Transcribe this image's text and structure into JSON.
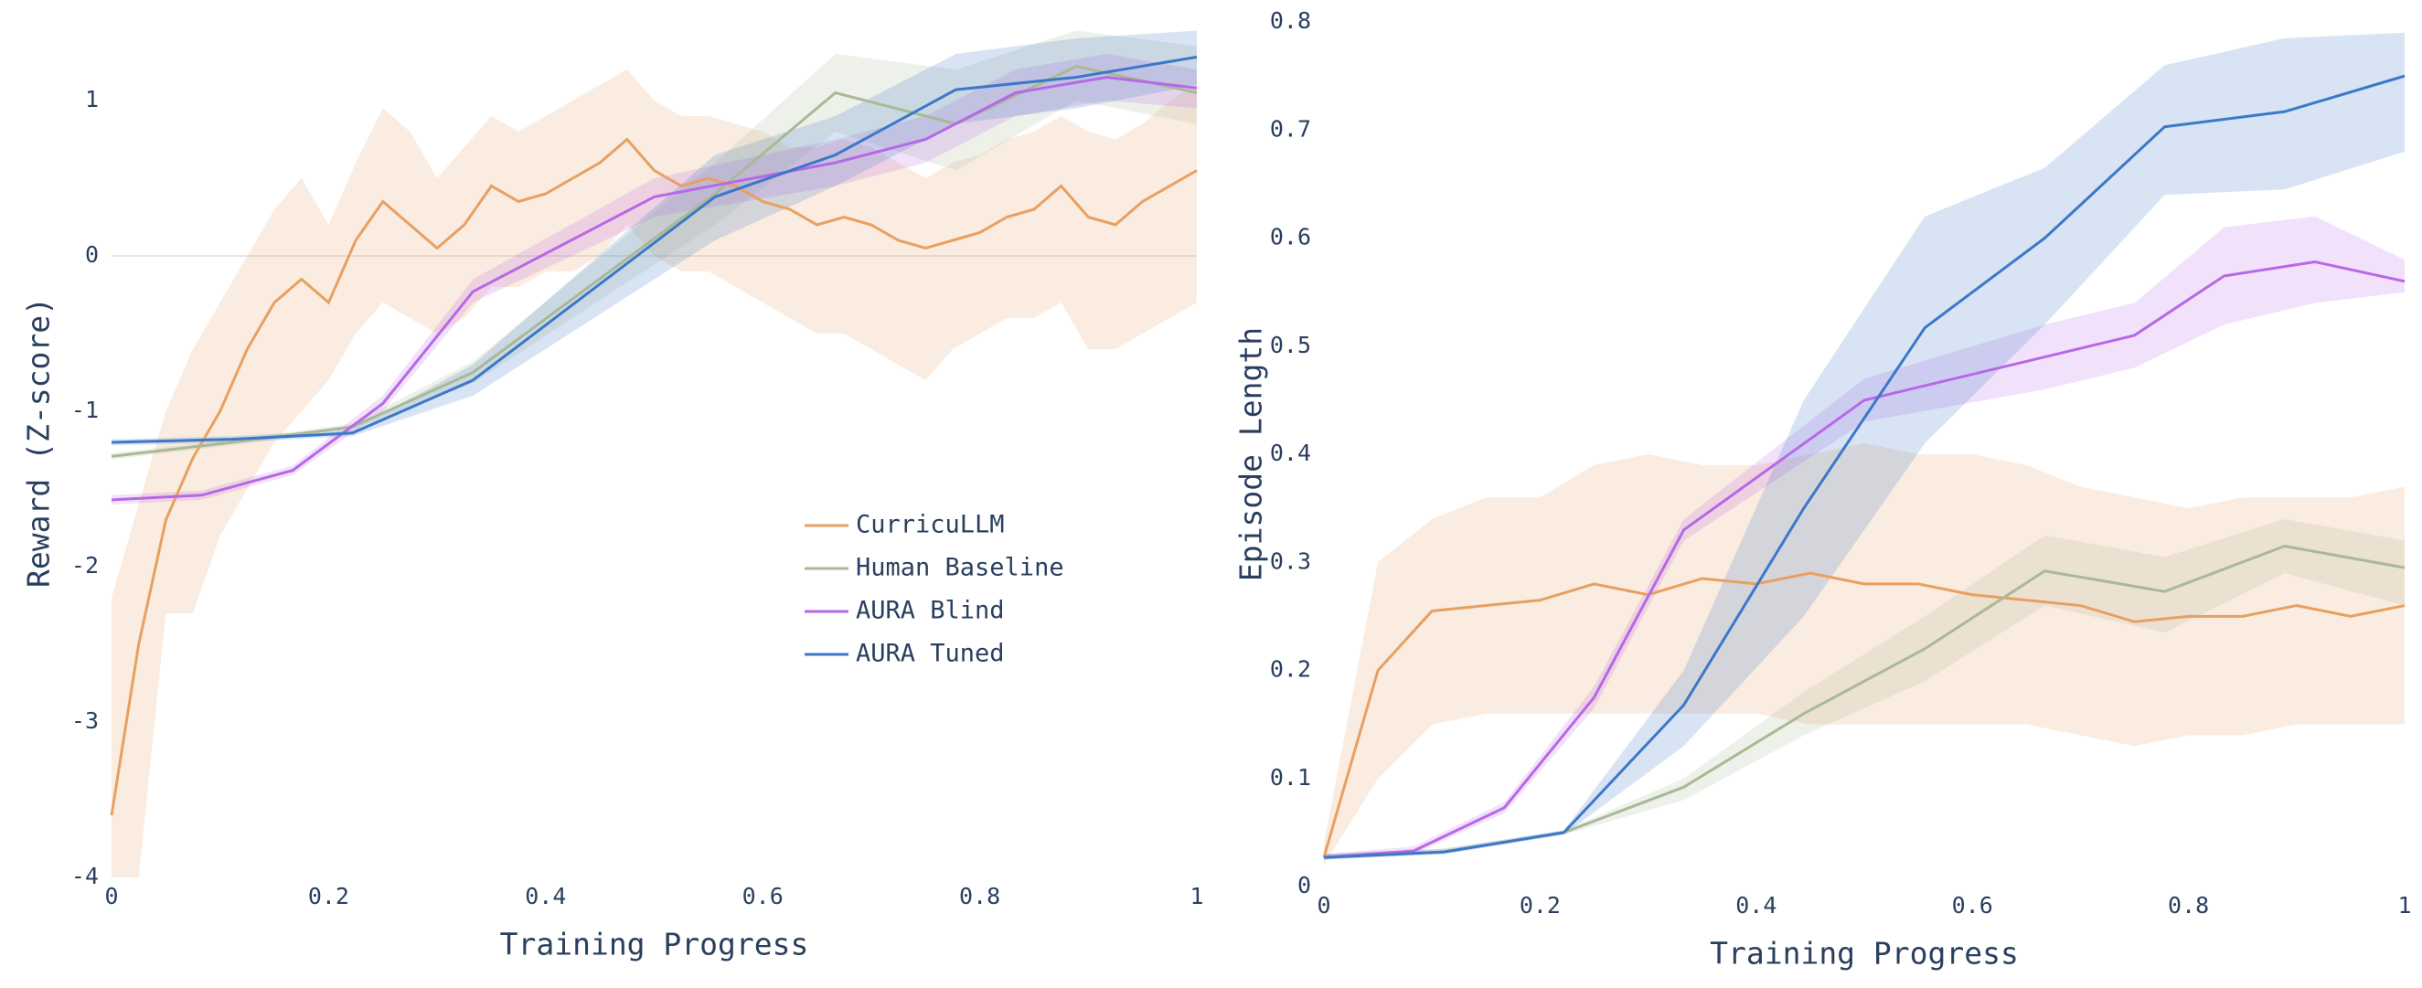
{
  "chart_data": [
    {
      "type": "line",
      "xlabel": "Training Progress",
      "ylabel": "Reward (Z-score)",
      "xlim": [
        0,
        1
      ],
      "ylim": [
        -4,
        1.6
      ],
      "xticks": [
        0,
        0.2,
        0.4,
        0.6,
        0.8,
        1
      ],
      "yticks": [
        -4,
        -3,
        -2,
        -1,
        0,
        1
      ],
      "zeroline": true,
      "legend": true,
      "series": [
        {
          "name": "CurricuLLM",
          "color": "#e8a062",
          "x": [
            0,
            0.025,
            0.05,
            0.075,
            0.1,
            0.125,
            0.15,
            0.175,
            0.2,
            0.225,
            0.25,
            0.275,
            0.3,
            0.325,
            0.35,
            0.375,
            0.4,
            0.425,
            0.45,
            0.475,
            0.5,
            0.525,
            0.55,
            0.575,
            0.6,
            0.625,
            0.65,
            0.675,
            0.7,
            0.725,
            0.75,
            0.775,
            0.8,
            0.825,
            0.85,
            0.875,
            0.9,
            0.925,
            0.95,
            0.975,
            1
          ],
          "values": [
            -3.6,
            -2.5,
            -1.7,
            -1.3,
            -1.0,
            -0.6,
            -0.3,
            -0.15,
            -0.3,
            0.1,
            0.35,
            0.2,
            0.05,
            0.2,
            0.45,
            0.35,
            0.4,
            0.5,
            0.6,
            0.75,
            0.55,
            0.45,
            0.5,
            0.45,
            0.35,
            0.3,
            0.2,
            0.25,
            0.2,
            0.1,
            0.05,
            0.1,
            0.15,
            0.25,
            0.3,
            0.45,
            0.25,
            0.2,
            0.35,
            0.45,
            0.55
          ],
          "lower": [
            -4,
            -4,
            -2.3,
            -2.3,
            -1.8,
            -1.5,
            -1.2,
            -1.0,
            -0.8,
            -0.5,
            -0.3,
            -0.4,
            -0.5,
            -0.4,
            -0.2,
            -0.2,
            -0.1,
            -0.1,
            0.0,
            0.2,
            0.0,
            -0.1,
            -0.1,
            -0.2,
            -0.3,
            -0.4,
            -0.5,
            -0.5,
            -0.6,
            -0.7,
            -0.8,
            -0.6,
            -0.5,
            -0.4,
            -0.4,
            -0.3,
            -0.6,
            -0.6,
            -0.5,
            -0.4,
            -0.3
          ],
          "upper": [
            -2.2,
            -1.6,
            -1.0,
            -0.6,
            -0.3,
            0.0,
            0.3,
            0.5,
            0.2,
            0.6,
            0.95,
            0.8,
            0.5,
            0.7,
            0.9,
            0.8,
            0.9,
            1.0,
            1.1,
            1.2,
            1.0,
            0.9,
            0.9,
            0.85,
            0.8,
            0.7,
            0.7,
            0.75,
            0.7,
            0.6,
            0.5,
            0.6,
            0.65,
            0.75,
            0.8,
            0.9,
            0.8,
            0.75,
            0.85,
            1.0,
            1.1
          ]
        },
        {
          "name": "Human Baseline",
          "color": "#a9b996",
          "x": [
            0,
            0.111,
            0.222,
            0.333,
            0.556,
            0.667,
            0.778,
            0.889,
            1
          ],
          "values": [
            -1.29,
            -1.2,
            -1.1,
            -0.75,
            0.4,
            1.05,
            0.85,
            1.22,
            1.05
          ],
          "lower": [
            -1.31,
            -1.22,
            -1.12,
            -0.82,
            0.2,
            0.8,
            0.55,
            1.0,
            0.85
          ],
          "upper": [
            -1.27,
            -1.18,
            -1.08,
            -0.68,
            0.6,
            1.3,
            1.2,
            1.45,
            1.35
          ]
        },
        {
          "name": "AURA Blind",
          "color": "#b768e6",
          "x": [
            0,
            0.083,
            0.167,
            0.25,
            0.333,
            0.5,
            0.667,
            0.75,
            0.833,
            0.917,
            1
          ],
          "values": [
            -1.57,
            -1.54,
            -1.38,
            -0.95,
            -0.23,
            0.38,
            0.6,
            0.75,
            1.05,
            1.15,
            1.08
          ],
          "lower": [
            -1.6,
            -1.57,
            -1.41,
            -1.0,
            -0.3,
            0.25,
            0.45,
            0.6,
            0.9,
            1.0,
            0.95
          ],
          "upper": [
            -1.54,
            -1.51,
            -1.35,
            -0.9,
            -0.15,
            0.5,
            0.75,
            0.9,
            1.2,
            1.3,
            1.2
          ]
        },
        {
          "name": "AURA Tuned",
          "color": "#3b78c8",
          "x": [
            0,
            0.111,
            0.222,
            0.333,
            0.556,
            0.667,
            0.778,
            0.889,
            1
          ],
          "values": [
            -1.2,
            -1.18,
            -1.14,
            -0.8,
            0.38,
            0.65,
            1.07,
            1.15,
            1.28
          ],
          "lower": [
            -1.22,
            -1.2,
            -1.16,
            -0.9,
            0.1,
            0.45,
            0.85,
            0.95,
            1.1
          ],
          "upper": [
            -1.18,
            -1.16,
            -1.12,
            -0.7,
            0.65,
            0.9,
            1.3,
            1.4,
            1.45
          ]
        }
      ]
    },
    {
      "type": "line",
      "xlabel": "Training Progress",
      "ylabel": "Episode Length",
      "xlim": [
        0,
        1
      ],
      "ylim": [
        0,
        0.8
      ],
      "xticks": [
        0,
        0.2,
        0.4,
        0.6,
        0.8,
        1
      ],
      "yticks": [
        0,
        0.1,
        0.2,
        0.3,
        0.4,
        0.5,
        0.6,
        0.7,
        0.8
      ],
      "zeroline": false,
      "legend": false,
      "series": [
        {
          "name": "CurricuLLM",
          "color": "#e8a062",
          "x": [
            0,
            0.05,
            0.1,
            0.15,
            0.2,
            0.25,
            0.3,
            0.35,
            0.4,
            0.45,
            0.5,
            0.55,
            0.6,
            0.65,
            0.7,
            0.75,
            0.8,
            0.85,
            0.9,
            0.95,
            1
          ],
          "values": [
            0.027,
            0.2,
            0.255,
            0.26,
            0.265,
            0.28,
            0.27,
            0.285,
            0.28,
            0.29,
            0.28,
            0.28,
            0.27,
            0.265,
            0.26,
            0.245,
            0.25,
            0.25,
            0.26,
            0.25,
            0.26
          ],
          "lower": [
            0.02,
            0.1,
            0.15,
            0.16,
            0.16,
            0.16,
            0.16,
            0.16,
            0.16,
            0.15,
            0.15,
            0.15,
            0.15,
            0.15,
            0.14,
            0.13,
            0.14,
            0.14,
            0.15,
            0.15,
            0.15
          ],
          "upper": [
            0.04,
            0.3,
            0.34,
            0.36,
            0.36,
            0.39,
            0.4,
            0.39,
            0.39,
            0.4,
            0.41,
            0.4,
            0.4,
            0.39,
            0.37,
            0.36,
            0.35,
            0.36,
            0.36,
            0.36,
            0.37
          ]
        },
        {
          "name": "Human Baseline",
          "color": "#a9b996",
          "x": [
            0,
            0.111,
            0.222,
            0.333,
            0.444,
            0.556,
            0.667,
            0.778,
            0.889,
            1
          ],
          "values": [
            0.027,
            0.032,
            0.05,
            0.092,
            0.16,
            0.22,
            0.292,
            0.273,
            0.315,
            0.295
          ],
          "lower": [
            0.025,
            0.03,
            0.048,
            0.08,
            0.14,
            0.19,
            0.26,
            0.235,
            0.29,
            0.26
          ],
          "upper": [
            0.03,
            0.035,
            0.052,
            0.1,
            0.18,
            0.25,
            0.325,
            0.305,
            0.34,
            0.32
          ]
        },
        {
          "name": "AURA Blind",
          "color": "#b768e6",
          "x": [
            0,
            0.083,
            0.167,
            0.25,
            0.333,
            0.5,
            0.667,
            0.75,
            0.833,
            0.917,
            1
          ],
          "values": [
            0.027,
            0.033,
            0.073,
            0.175,
            0.33,
            0.45,
            0.49,
            0.51,
            0.565,
            0.578,
            0.56
          ],
          "lower": [
            0.025,
            0.03,
            0.068,
            0.165,
            0.32,
            0.43,
            0.46,
            0.48,
            0.52,
            0.54,
            0.55
          ],
          "upper": [
            0.03,
            0.037,
            0.078,
            0.185,
            0.34,
            0.47,
            0.52,
            0.54,
            0.61,
            0.62,
            0.58
          ]
        },
        {
          "name": "AURA Tuned",
          "color": "#3b78c8",
          "x": [
            0,
            0.111,
            0.222,
            0.333,
            0.444,
            0.556,
            0.667,
            0.778,
            0.889,
            1
          ],
          "values": [
            0.027,
            0.032,
            0.05,
            0.168,
            0.35,
            0.517,
            0.6,
            0.703,
            0.717,
            0.75
          ],
          "lower": [
            0.025,
            0.03,
            0.048,
            0.13,
            0.25,
            0.41,
            0.52,
            0.64,
            0.645,
            0.68
          ],
          "upper": [
            0.03,
            0.035,
            0.052,
            0.2,
            0.45,
            0.62,
            0.665,
            0.76,
            0.785,
            0.79
          ]
        }
      ]
    }
  ]
}
